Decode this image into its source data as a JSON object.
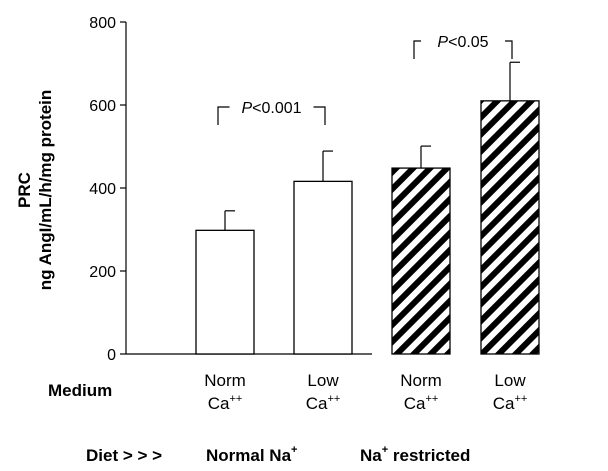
{
  "chart_data": {
    "type": "bar",
    "ylabel": "PRC",
    "ylabel_units": "ng AngI/mL/h/mg protein",
    "yticks": [
      0,
      200,
      400,
      600,
      800
    ],
    "ylim": [
      0,
      800
    ],
    "medium_label": "Medium",
    "categories": [
      {
        "line1": "Norm",
        "line2": "Ca",
        "sup": "++"
      },
      {
        "line1": "Low",
        "line2": "Ca",
        "sup": "++"
      },
      {
        "line1": "Norm",
        "line2": "Ca",
        "sup": "++"
      },
      {
        "line1": "Low",
        "line2": "Ca",
        "sup": "++"
      }
    ],
    "values": [
      298,
      416,
      448,
      610
    ],
    "errors": [
      47,
      73,
      53,
      93
    ],
    "fills": [
      "open",
      "open",
      "hatched",
      "hatched"
    ],
    "comparisons": [
      {
        "from": 0,
        "to": 1,
        "italic": "P",
        "text": "<0.001"
      },
      {
        "from": 2,
        "to": 3,
        "italic": "P",
        "text": "<0.05"
      }
    ],
    "diet": {
      "prefix": "Diet > > >",
      "groups": [
        {
          "label": "Normal Na",
          "sup": "+",
          "rest": ""
        },
        {
          "label": "Na",
          "sup": "+",
          "rest": " restricted"
        }
      ]
    }
  },
  "colors": {
    "bar_stroke": "#000000",
    "hatch": "#000000",
    "background": "#ffffff"
  }
}
